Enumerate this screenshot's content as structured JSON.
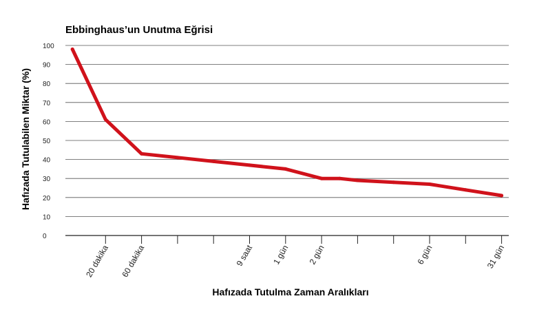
{
  "chart_data": {
    "type": "line",
    "title": "Ebbinghaus’un Unutma Eğrisi",
    "xlabel": "Hafızada Tutulma Zaman Aralıkları",
    "ylabel": "Hafızada Tutulabilen Miktar (%)",
    "ylim": [
      0,
      100
    ],
    "yticks": [
      0,
      10,
      20,
      30,
      40,
      50,
      60,
      70,
      80,
      90,
      100
    ],
    "grid": true,
    "line_color": "#d0121b",
    "xticks": [
      {
        "label": "20 dakika",
        "slot": 1
      },
      {
        "label": "60 dakika",
        "slot": 2
      },
      {
        "label": "",
        "slot": 3
      },
      {
        "label": "",
        "slot": 4
      },
      {
        "label": "9 saat",
        "slot": 5
      },
      {
        "label": "1 gün",
        "slot": 6
      },
      {
        "label": "2 gün",
        "slot": 7
      },
      {
        "label": "",
        "slot": 8
      },
      {
        "label": "",
        "slot": 9
      },
      {
        "label": "6 gün",
        "slot": 10
      },
      {
        "label": "",
        "slot": 11
      },
      {
        "label": "31 gün",
        "slot": 12
      }
    ],
    "series": [
      {
        "x": [
          0.08,
          1,
          2,
          3,
          4,
          5,
          6,
          7,
          7.5,
          8,
          9,
          10,
          11,
          12
        ],
        "values": [
          98,
          61,
          43,
          41,
          39,
          37,
          35,
          30,
          30,
          29,
          28,
          27,
          24,
          21
        ]
      }
    ]
  }
}
